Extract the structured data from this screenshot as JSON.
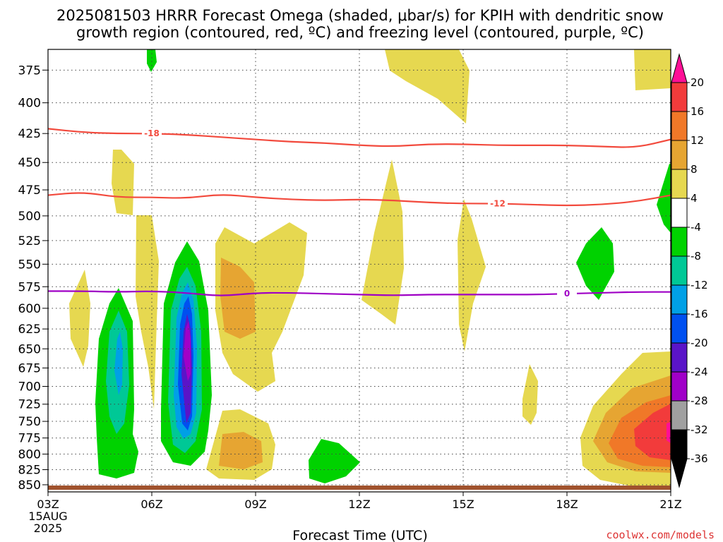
{
  "title_line1": "2025081503 HRRR Forecast Omega (shaded, μbar/s) for KPIH with dendritic snow",
  "title_line2": "growth region (contoured, red, ºC) and freezing level (contoured, purple, ºC)",
  "credit": "coolwx.com/models",
  "chart_data": {
    "type": "contour",
    "xlabel": "Forecast Time (UTC)",
    "x_ticks": [
      {
        "hour": 3,
        "label": "03Z",
        "sub1": "15AUG",
        "sub2": "2025"
      },
      {
        "hour": 6,
        "label": "06Z"
      },
      {
        "hour": 9,
        "label": "09Z"
      },
      {
        "hour": 12,
        "label": "12Z"
      },
      {
        "hour": 15,
        "label": "15Z"
      },
      {
        "hour": 18,
        "label": "18Z"
      },
      {
        "hour": 21,
        "label": "21Z"
      }
    ],
    "xlim": [
      3,
      21
    ],
    "y_ticks": [
      375,
      400,
      425,
      450,
      475,
      500,
      525,
      550,
      575,
      600,
      625,
      650,
      675,
      700,
      725,
      750,
      775,
      800,
      825,
      850
    ],
    "ylim": [
      360,
      862
    ],
    "y_scale": "log-pressure",
    "grid": true,
    "colorbar": {
      "labels": [
        "20",
        "16",
        "12",
        "8",
        "4",
        "-4",
        "-8",
        "-12",
        "-16",
        "-20",
        "-24",
        "-28",
        "-32",
        "-36"
      ],
      "colors": [
        "#ff0f96",
        "#f23b3b",
        "#f07828",
        "#e6a532",
        "#e6d850",
        "#ffffff",
        "#00d200",
        "#00c896",
        "#00a0e6",
        "#0050f0",
        "#5a14c8",
        "#a000c8",
        "#a0a0a0",
        "#000000"
      ]
    },
    "contour_lines": [
      {
        "label": "-18",
        "color": "#f24a3d",
        "label_hour": 6,
        "points": [
          [
            3,
            421
          ],
          [
            4,
            424
          ],
          [
            5,
            425
          ],
          [
            6,
            425
          ],
          [
            7,
            426
          ],
          [
            8,
            428
          ],
          [
            9,
            430
          ],
          [
            10,
            432
          ],
          [
            11,
            433
          ],
          [
            12,
            435
          ],
          [
            13,
            436
          ],
          [
            14,
            434
          ],
          [
            15,
            434
          ],
          [
            16,
            435
          ],
          [
            17,
            435
          ],
          [
            18,
            435
          ],
          [
            19,
            436
          ],
          [
            20,
            437
          ],
          [
            21,
            430
          ]
        ]
      },
      {
        "label": "-12",
        "color": "#f24a3d",
        "label_hour": 16,
        "points": [
          [
            3,
            480
          ],
          [
            4,
            477
          ],
          [
            5,
            482
          ],
          [
            6,
            482
          ],
          [
            7,
            483
          ],
          [
            8,
            479
          ],
          [
            9,
            482
          ],
          [
            10,
            484
          ],
          [
            11,
            485
          ],
          [
            12,
            484
          ],
          [
            13,
            485
          ],
          [
            14,
            487
          ],
          [
            15,
            488
          ],
          [
            16,
            488
          ],
          [
            17,
            489
          ],
          [
            18,
            490
          ],
          [
            19,
            489
          ],
          [
            20,
            486
          ],
          [
            21,
            480
          ]
        ]
      },
      {
        "label": "0",
        "color": "#9f00c5",
        "label_hour": 18,
        "points": [
          [
            3,
            580
          ],
          [
            4,
            580
          ],
          [
            5,
            581
          ],
          [
            6,
            580
          ],
          [
            7,
            582
          ],
          [
            8,
            586
          ],
          [
            9,
            582
          ],
          [
            10,
            582
          ],
          [
            11,
            583
          ],
          [
            12,
            584
          ],
          [
            13,
            585
          ],
          [
            14,
            584
          ],
          [
            15,
            584
          ],
          [
            16,
            584
          ],
          [
            17,
            584
          ],
          [
            18,
            583
          ],
          [
            19,
            582
          ],
          [
            20,
            581
          ],
          [
            21,
            581
          ]
        ]
      }
    ]
  }
}
